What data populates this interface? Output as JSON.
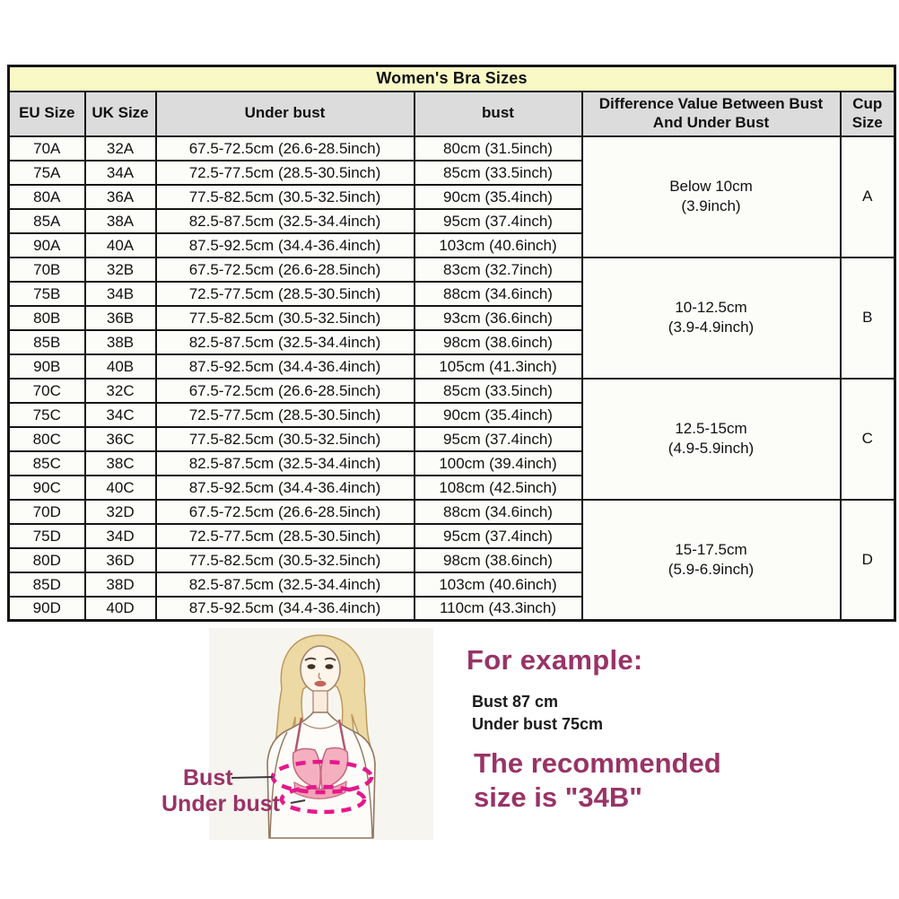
{
  "chart_data": {
    "type": "table",
    "title": "Women's Bra Sizes",
    "headers": [
      "EU Size",
      "UK Size",
      "Under bust",
      "bust",
      "Difference Value Between Bust And Under Bust",
      "Cup Size"
    ],
    "groups": [
      {
        "cup_size": "A",
        "difference_line1": "Below 10cm",
        "difference_line2": "(3.9inch)",
        "rows": [
          {
            "eu": "70A",
            "uk": "32A",
            "under_bust": "67.5-72.5cm (26.6-28.5inch)",
            "bust": "80cm (31.5inch)"
          },
          {
            "eu": "75A",
            "uk": "34A",
            "under_bust": "72.5-77.5cm (28.5-30.5inch)",
            "bust": "85cm (33.5inch)"
          },
          {
            "eu": "80A",
            "uk": "36A",
            "under_bust": "77.5-82.5cm (30.5-32.5inch)",
            "bust": "90cm (35.4inch)"
          },
          {
            "eu": "85A",
            "uk": "38A",
            "under_bust": "82.5-87.5cm (32.5-34.4inch)",
            "bust": "95cm (37.4inch)"
          },
          {
            "eu": "90A",
            "uk": "40A",
            "under_bust": "87.5-92.5cm (34.4-36.4inch)",
            "bust": "103cm (40.6inch)"
          }
        ]
      },
      {
        "cup_size": "B",
        "difference_line1": "10-12.5cm",
        "difference_line2": "(3.9-4.9inch)",
        "rows": [
          {
            "eu": "70B",
            "uk": "32B",
            "under_bust": "67.5-72.5cm (26.6-28.5inch)",
            "bust": "83cm (32.7inch)"
          },
          {
            "eu": "75B",
            "uk": "34B",
            "under_bust": "72.5-77.5cm (28.5-30.5inch)",
            "bust": "88cm (34.6inch)"
          },
          {
            "eu": "80B",
            "uk": "36B",
            "under_bust": "77.5-82.5cm (30.5-32.5inch)",
            "bust": "93cm (36.6inch)"
          },
          {
            "eu": "85B",
            "uk": "38B",
            "under_bust": "82.5-87.5cm (32.5-34.4inch)",
            "bust": "98cm (38.6inch)"
          },
          {
            "eu": "90B",
            "uk": "40B",
            "under_bust": "87.5-92.5cm (34.4-36.4inch)",
            "bust": "105cm (41.3inch)"
          }
        ]
      },
      {
        "cup_size": "C",
        "difference_line1": "12.5-15cm",
        "difference_line2": "(4.9-5.9inch)",
        "rows": [
          {
            "eu": "70C",
            "uk": "32C",
            "under_bust": "67.5-72.5cm (26.6-28.5inch)",
            "bust": "85cm (33.5inch)"
          },
          {
            "eu": "75C",
            "uk": "34C",
            "under_bust": "72.5-77.5cm (28.5-30.5inch)",
            "bust": "90cm (35.4inch)"
          },
          {
            "eu": "80C",
            "uk": "36C",
            "under_bust": "77.5-82.5cm (30.5-32.5inch)",
            "bust": "95cm (37.4inch)"
          },
          {
            "eu": "85C",
            "uk": "38C",
            "under_bust": "82.5-87.5cm (32.5-34.4inch)",
            "bust": "100cm (39.4inch)"
          },
          {
            "eu": "90C",
            "uk": "40C",
            "under_bust": "87.5-92.5cm (34.4-36.4inch)",
            "bust": "108cm (42.5inch)"
          }
        ]
      },
      {
        "cup_size": "D",
        "difference_line1": "15-17.5cm",
        "difference_line2": "(5.9-6.9inch)",
        "rows": [
          {
            "eu": "70D",
            "uk": "32D",
            "under_bust": "67.5-72.5cm (26.6-28.5inch)",
            "bust": "88cm (34.6inch)"
          },
          {
            "eu": "75D",
            "uk": "34D",
            "under_bust": "72.5-77.5cm (28.5-30.5inch)",
            "bust": "95cm (37.4inch)"
          },
          {
            "eu": "80D",
            "uk": "36D",
            "under_bust": "77.5-82.5cm (30.5-32.5inch)",
            "bust": "98cm (38.6inch)"
          },
          {
            "eu": "85D",
            "uk": "38D",
            "under_bust": "82.5-87.5cm (32.5-34.4inch)",
            "bust": "103cm (40.6inch)"
          },
          {
            "eu": "90D",
            "uk": "40D",
            "under_bust": "87.5-92.5cm (34.4-36.4inch)",
            "bust": "110cm (43.3inch)"
          }
        ]
      }
    ]
  },
  "diagram": {
    "bust_label": "Bust",
    "under_bust_label": "Under bust"
  },
  "example": {
    "heading": "For example:",
    "bust_line": "Bust 87 cm",
    "under_bust_line": "Under bust 75cm",
    "recommended_line1": "The recommended",
    "recommended_line2": "size is \"34B\""
  },
  "colors": {
    "title_bg": "#f9f9c5",
    "header_bg": "#dcdcdc",
    "row_bg": "#fcfcf9",
    "border": "#161616",
    "accent_purple": "#993366",
    "measure_pink": "#e5188c",
    "bra_pink": "#f5b0c0"
  }
}
